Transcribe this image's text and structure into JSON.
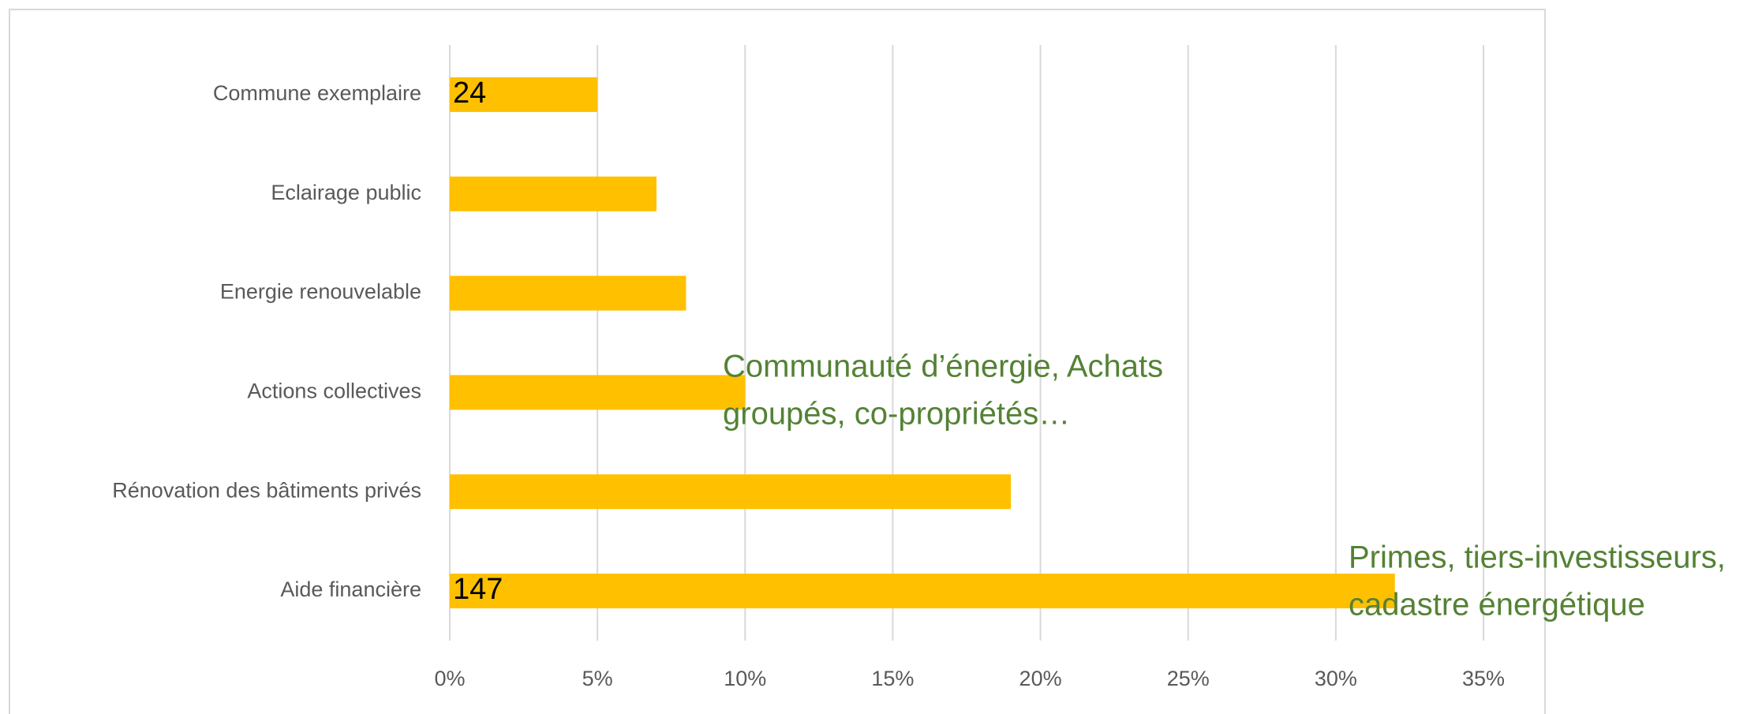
{
  "chart_data": {
    "type": "bar",
    "orientation": "horizontal",
    "categories": [
      "Commune exemplaire",
      "Eclairage public",
      "Energie renouvelable",
      "Actions collectives",
      "Rénovation des bâtiments privés",
      "Aide financière"
    ],
    "values": [
      5,
      7,
      8,
      10,
      19,
      32
    ],
    "color": "#ffc000",
    "xlim": [
      0,
      35
    ],
    "xticks": [
      {
        "value": 0,
        "label": "0%"
      },
      {
        "value": 5,
        "label": "5%"
      },
      {
        "value": 10,
        "label": "10%"
      },
      {
        "value": 15,
        "label": "15%"
      },
      {
        "value": 20,
        "label": "20%"
      },
      {
        "value": 25,
        "label": "25%"
      },
      {
        "value": 30,
        "label": "30%"
      },
      {
        "value": 35,
        "label": "35%"
      }
    ],
    "grid": true,
    "annotations": [
      {
        "lines": [
          "24"
        ],
        "color": "#000000"
      },
      {
        "lines": [
          "147"
        ],
        "color": "#000000"
      },
      {
        "lines": [
          "Communauté d’énergie, Achats",
          "groupés, co-propriétés…"
        ],
        "color": "#548235"
      },
      {
        "lines": [
          "Primes, tiers-investisseurs,",
          "cadastre énergétique"
        ],
        "color": "#548235"
      }
    ]
  }
}
